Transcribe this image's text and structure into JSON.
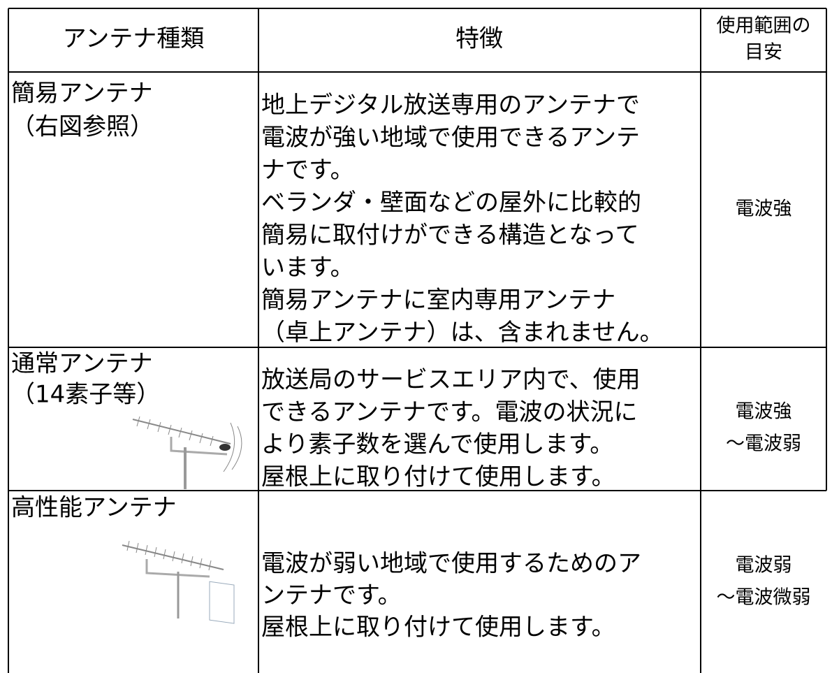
{
  "header": {
    "type": "アンテナ種類",
    "feature": "特徴",
    "range": [
      "使用範囲の",
      "目安"
    ]
  },
  "rows": [
    {
      "name": [
        "簡易アンテナ",
        "（右図参照）"
      ],
      "feature": [
        "地上デジタル放送専用のアンテナで",
        "電波が強い地域で使用できるアンテ",
        "ナです。",
        "ベランダ・壁面などの屋外に比較的",
        "簡易に取付けができる構造となって",
        "います。",
        "簡易アンテナに室内専用アンテナ",
        "（卓上アンテナ）は、含まれません。"
      ],
      "range": [
        "電波強"
      ]
    },
    {
      "name": [
        "通常アンテナ",
        "（14素子等）"
      ],
      "feature": [
        "放送局のサービスエリア内で、使用",
        "できるアンテナです。電波の状況に",
        "より素子数を選んで使用します。",
        "屋根上に取り付けて使用します。"
      ],
      "range": [
        "電波強",
        "～電波弱"
      ]
    },
    {
      "name": [
        "高性能アンテナ"
      ],
      "feature": [
        "電波が弱い地域で使用するためのア",
        "ンテナです。",
        "屋根上に取り付けて使用します。"
      ],
      "range": [
        "電波弱",
        "～電波微弱"
      ]
    }
  ]
}
